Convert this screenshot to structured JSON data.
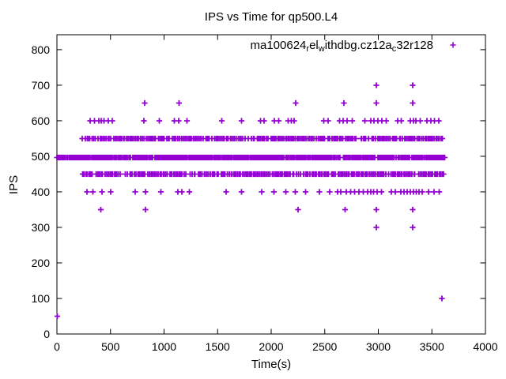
{
  "title": "IPS vs Time for qp500.L4",
  "legend": {
    "series_label_raw": "ma100624_rel_withdbg.cz12a_c32r128",
    "parts": [
      {
        "text": "ma100624",
        "sub": false
      },
      {
        "text": "r",
        "sub": true
      },
      {
        "text": "el",
        "sub": false
      },
      {
        "text": "w",
        "sub": true
      },
      {
        "text": "ithdbg.cz12a",
        "sub": false
      },
      {
        "text": "c",
        "sub": true
      },
      {
        "text": "32r128",
        "sub": false
      }
    ],
    "marker_glyph": "+"
  },
  "axes": {
    "x": {
      "label": "Time(s)",
      "min": 0,
      "max": 4000,
      "ticks": [
        0,
        500,
        1000,
        1500,
        2000,
        2500,
        3000,
        3500,
        4000
      ]
    },
    "y": {
      "label": "IPS",
      "min": 0,
      "max": 800,
      "ticks": [
        0,
        100,
        200,
        300,
        400,
        500,
        600,
        700,
        800
      ]
    }
  },
  "colors": {
    "marker": "#9400d3",
    "text": "#000000",
    "border": "#000000",
    "background": "#ffffff"
  },
  "chart_data": {
    "type": "scatter",
    "title": "IPS vs Time for qp500.L4",
    "xlabel": "Time(s)",
    "ylabel": "IPS",
    "xlim": [
      0,
      4000
    ],
    "ylim": [
      0,
      842
    ],
    "grid": false,
    "legend_position": "top-right-inside",
    "series_name": "ma100624_rel_withdbg.cz12a_c32r128",
    "marker": "plus",
    "bands": [
      {
        "ips": 550,
        "t_start": 235,
        "t_end": 3605,
        "step": 12,
        "fill": 0.86
      },
      {
        "ips": 497,
        "t_start": 0,
        "t_end": 3630,
        "step": 8,
        "fill": 0.97
      },
      {
        "ips": 450,
        "t_start": 235,
        "t_end": 3620,
        "step": 12,
        "fill": 0.86
      }
    ],
    "outlier_rows": [
      {
        "ips": 700,
        "times": [
          2980,
          3320
        ]
      },
      {
        "ips": 650,
        "times": [
          820,
          1140,
          2230,
          2680,
          2980,
          3320
        ]
      },
      {
        "ips": 600,
        "times": [
          310,
          350,
          390,
          415,
          440,
          480,
          515,
          810,
          955,
          1095,
          1135,
          1215,
          1540,
          1725,
          1900,
          1935,
          2030,
          2070,
          2160,
          2190,
          2215,
          2490,
          2530,
          2640,
          2670,
          2710,
          2755,
          2875,
          2930,
          2960,
          2995,
          3035,
          3075,
          3180,
          3215,
          3300,
          3330,
          3350,
          3390,
          3455,
          3490,
          3525,
          3565
        ]
      },
      {
        "ips": 400,
        "times": [
          280,
          335,
          420,
          500,
          730,
          825,
          970,
          1130,
          1165,
          1235,
          1580,
          1725,
          1910,
          2025,
          2135,
          2225,
          2320,
          2450,
          2545,
          2620,
          2650,
          2700,
          2740,
          2780,
          2820,
          2860,
          2900,
          2930,
          2955,
          2990,
          3030,
          3120,
          3160,
          3210,
          3240,
          3270,
          3300,
          3330,
          3355,
          3380,
          3410,
          3470,
          3520,
          3570
        ]
      },
      {
        "ips": 350,
        "times": [
          410,
          825,
          2250,
          2690,
          2980,
          3320
        ]
      },
      {
        "ips": 300,
        "times": [
          2980,
          3320
        ]
      },
      {
        "ips": 100,
        "times": [
          3595
        ]
      },
      {
        "ips": 50,
        "times": [
          5
        ]
      }
    ]
  }
}
